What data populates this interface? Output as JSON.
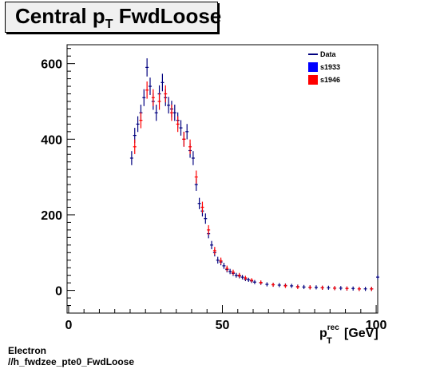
{
  "chart_data": {
    "type": "scatter",
    "title": "Central p_T FwdLoose",
    "title_main": "Central p",
    "title_sub": "T",
    "title_rest": " FwdLoose",
    "xlabel": "p_T^rec [GeV]",
    "xlabel_main": "p",
    "xlabel_sub": "T",
    "xlabel_sup": "rec",
    "xlabel_rest": "[GeV]",
    "ylabel": "",
    "xlim": [
      -0.5,
      100.5
    ],
    "ylim": [
      -60,
      650
    ],
    "xticks": [
      0,
      50,
      100
    ],
    "yticks": [
      0,
      200,
      400,
      600
    ],
    "grid": false,
    "legend_position": "top-right",
    "series": [
      {
        "name": "Data",
        "color": "#00007f",
        "x": [
          20.5,
          21.5,
          22.5,
          23.5,
          24.5,
          25.5,
          26.5,
          27.5,
          28.5,
          29.5,
          30.5,
          31.5,
          32.5,
          33.5,
          34.5,
          35.5,
          36.5,
          37.5,
          38.5,
          39.5,
          40.5,
          41.5,
          42.5,
          43.5,
          44.5,
          45.5,
          46.5,
          47.5,
          48.5,
          49.5,
          50.5,
          51.5,
          52.5,
          53.5,
          54.5,
          55.5,
          56.5,
          57.5,
          58.5,
          59.5,
          60.5,
          62.5,
          64.5,
          66.5,
          68.5,
          70.5,
          72.5,
          74.5,
          76.5,
          78.5,
          80.5,
          82.5,
          84.5,
          86.5,
          88.5,
          90.5,
          92.5,
          94.5,
          96.5,
          98.5,
          100.5
        ],
        "y": [
          350,
          410,
          440,
          470,
          510,
          590,
          540,
          500,
          470,
          520,
          550,
          510,
          490,
          480,
          470,
          450,
          430,
          400,
          420,
          370,
          350,
          280,
          230,
          210,
          190,
          150,
          120,
          100,
          80,
          75,
          65,
          55,
          50,
          45,
          40,
          38,
          35,
          30,
          28,
          25,
          22,
          20,
          16,
          15,
          14,
          13,
          12,
          10,
          9,
          8,
          8,
          7,
          7,
          6,
          6,
          5,
          5,
          4,
          4,
          4,
          35
        ]
      },
      {
        "name": "s1933",
        "color": "#0000ff",
        "x": [],
        "y": []
      },
      {
        "name": "s1946",
        "color": "#ff0000",
        "x": [
          21.5,
          23.5,
          25.5,
          27.5,
          29.5,
          31.5,
          33.5,
          35.5,
          37.5,
          39.5,
          41.5,
          43.5,
          45.5,
          47.5,
          49.5,
          51.5,
          53.5,
          55.5,
          57.5,
          59.5,
          62.5,
          66.5,
          70.5,
          74.5,
          78.5,
          82.5,
          86.5,
          90.5,
          94.5,
          98.5
        ],
        "y": [
          380,
          450,
          530,
          510,
          500,
          520,
          470,
          440,
          400,
          380,
          300,
          220,
          160,
          105,
          78,
          58,
          48,
          40,
          33,
          27,
          21,
          15,
          12,
          9,
          8,
          7,
          6,
          5,
          4,
          4
        ]
      }
    ]
  },
  "footer": {
    "line1": "Electron",
    "line2": "//h_fwdzee_pte0_FwdLoose"
  }
}
